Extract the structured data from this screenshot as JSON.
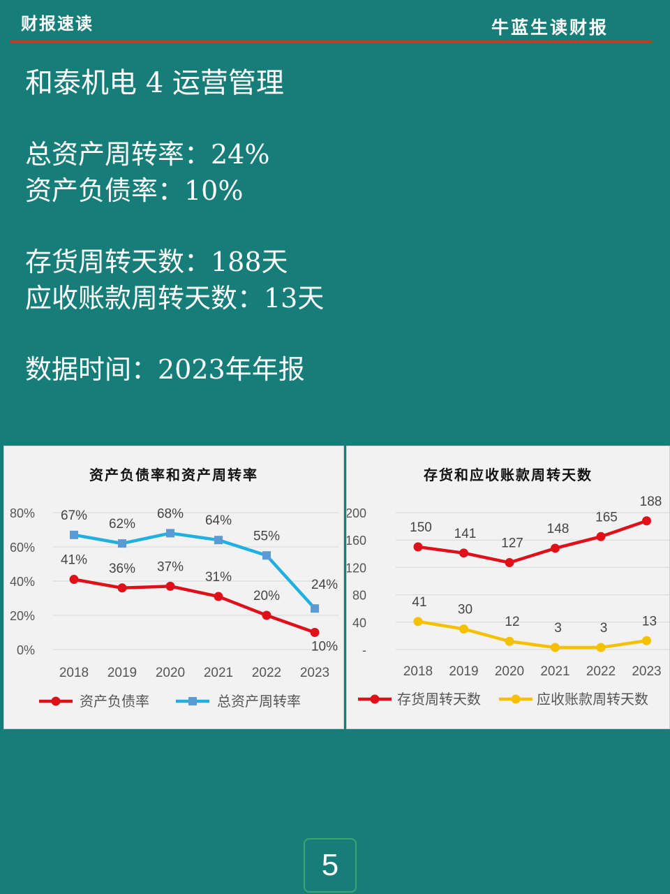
{
  "header": {
    "left": "财报速读",
    "right": "牛蓝生读财报"
  },
  "title": "和泰机电 4 运营管理",
  "metrics": [
    {
      "text": "总资产周转率：24%"
    },
    {
      "text": "资产负债率：10%"
    },
    {
      "text": "存货周转天数：188天"
    },
    {
      "text": "应收账款周转天数：13天"
    },
    {
      "text": "数据时间：2023年年报"
    }
  ],
  "page_number": "5",
  "colors": {
    "background": "#167d78",
    "red": "#e0101a",
    "blue": "#1fb0e0",
    "yellow": "#f5c000"
  },
  "chart_data": [
    {
      "type": "line",
      "title": "资产负债率和资产周转率",
      "categories": [
        "2018",
        "2019",
        "2020",
        "2021",
        "2022",
        "2023"
      ],
      "ylim": [
        0,
        80
      ],
      "yticks": [
        "0%",
        "20%",
        "40%",
        "60%",
        "80%"
      ],
      "grid": true,
      "legend_position": "bottom",
      "series": [
        {
          "name": "资产负债率",
          "values": [
            41,
            36,
            37,
            31,
            20,
            10
          ],
          "labels": [
            "41%",
            "36%",
            "37%",
            "31%",
            "20%",
            "10%"
          ],
          "color": "#e0101a",
          "marker": "circle"
        },
        {
          "name": "总资产周转率",
          "values": [
            67,
            62,
            68,
            64,
            55,
            24
          ],
          "labels": [
            "67%",
            "62%",
            "68%",
            "64%",
            "55%",
            "24%"
          ],
          "color": "#1fb0e0",
          "marker": "square"
        }
      ]
    },
    {
      "type": "line",
      "title": "存货和应收账款周转天数",
      "categories": [
        "2018",
        "2019",
        "2020",
        "2021",
        "2022",
        "2023"
      ],
      "ylim": [
        0,
        200
      ],
      "yticks": [
        "-",
        "40",
        "80",
        "120",
        "160",
        "200"
      ],
      "grid": true,
      "legend_position": "bottom",
      "series": [
        {
          "name": "存货周转天数",
          "values": [
            150,
            141,
            127,
            148,
            165,
            188
          ],
          "labels": [
            "150",
            "141",
            "127",
            "148",
            "165",
            "188"
          ],
          "color": "#e0101a",
          "marker": "circle"
        },
        {
          "name": "应收账款周转天数",
          "values": [
            41,
            30,
            12,
            3,
            3,
            13
          ],
          "labels": [
            "41",
            "30",
            "12",
            "3",
            "3",
            "13"
          ],
          "color": "#f5c000",
          "marker": "circle"
        }
      ]
    }
  ]
}
